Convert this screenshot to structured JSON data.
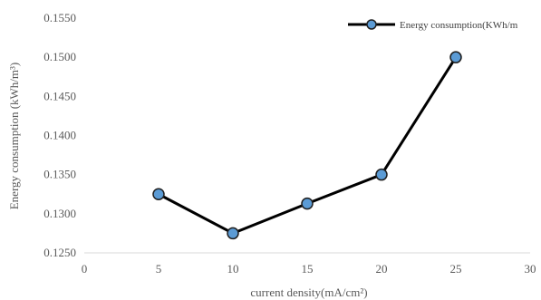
{
  "chart_data": {
    "type": "line",
    "title": "",
    "xlabel": "current density(mA/cm²)",
    "ylabel": "Energy consumption (kWh/m³)",
    "xlim": [
      0,
      30
    ],
    "ylim": [
      0.125,
      0.155
    ],
    "x_ticks": [
      "0",
      "5",
      "10",
      "15",
      "20",
      "25",
      "30"
    ],
    "y_ticks": [
      "0.1250",
      "0.1300",
      "0.1350",
      "0.1400",
      "0.1450",
      "0.1500",
      "0.1550"
    ],
    "grid": false,
    "legend_position": "top-right",
    "series": [
      {
        "name": "Energy consumption(KWh/m",
        "x": [
          5,
          10,
          15,
          20,
          25
        ],
        "y": [
          0.1325,
          0.1275,
          0.1313,
          0.135,
          0.15
        ],
        "line_color": "#000000",
        "marker_color": "#5b9bd5",
        "marker_edge": "#1f1f1f"
      }
    ]
  }
}
